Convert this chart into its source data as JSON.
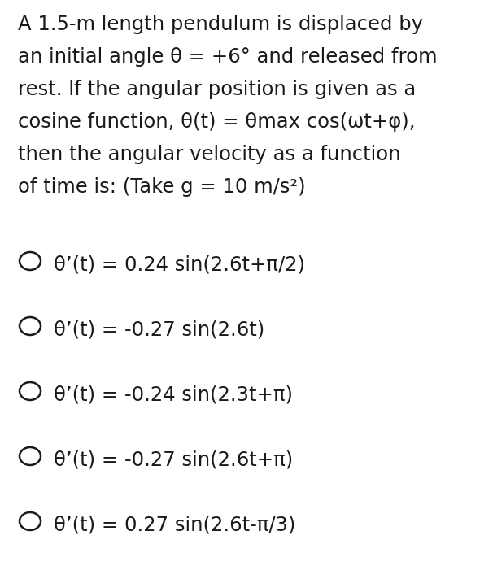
{
  "background_color": "#ffffff",
  "text_color": "#1a1a1a",
  "question_lines": [
    "A 1.5-m length pendulum is displaced by",
    "an initial angle θ = +6° and released from",
    "rest. If the angular position is given as a",
    "cosine function, θ(t) = θmax cos(ωt+φ),",
    "then the angular velocity as a function",
    "of time is: (Take g = 10 m/s²)"
  ],
  "choices": [
    "θ’(t) = 0.24 sin(2.6t+π/2)",
    "θ’(t) = -0.27 sin(2.6t)",
    "θ’(t) = -0.24 sin(2.3t+π)",
    "θ’(t) = -0.27 sin(2.6t+π)",
    "θ’(t) = 0.27 sin(2.6t-π/3)"
  ],
  "question_font_size": 17.5,
  "choice_font_size": 17.5,
  "circle_linewidth": 1.8,
  "fig_width": 6.06,
  "fig_height": 7.17,
  "dpi": 100
}
